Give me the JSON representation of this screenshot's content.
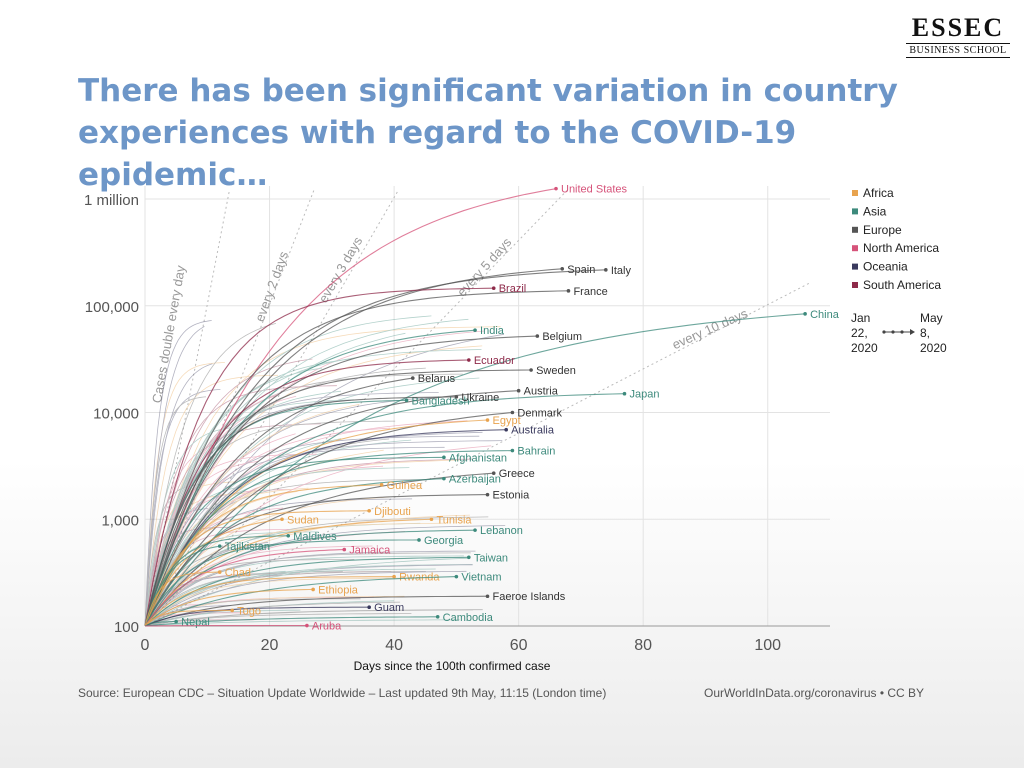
{
  "logo": {
    "main": "ESSEC",
    "sub": "BUSINESS SCHOOL"
  },
  "slide": {
    "title": "There has been significant variation in country experiences with regard to the COVID-19 epidemic…"
  },
  "footer": {
    "source": "Source: European CDC – Situation Update Worldwide – Last updated 9th May, 11:15 (London time)",
    "url": "OurWorldInData.org/coronavirus • CC BY"
  },
  "chart_data": {
    "type": "line",
    "title": "",
    "xlabel": "Days since the 100th confirmed case",
    "ylabel": "",
    "xlim": [
      0,
      110
    ],
    "ylim": [
      100,
      1300000
    ],
    "y_scale": "log",
    "grid": true,
    "x_ticks": [
      {
        "value": 0,
        "label": "0"
      },
      {
        "value": 20,
        "label": "20"
      },
      {
        "value": 40,
        "label": "40"
      },
      {
        "value": 60,
        "label": "60"
      },
      {
        "value": 80,
        "label": "80"
      },
      {
        "value": 100,
        "label": "100"
      }
    ],
    "y_ticks": [
      {
        "value": 100,
        "label": "100"
      },
      {
        "value": 1000,
        "label": "1,000"
      },
      {
        "value": 10000,
        "label": "10,000"
      },
      {
        "value": 100000,
        "label": "100,000"
      },
      {
        "value": 1000000,
        "label": "1 million"
      }
    ],
    "legend": {
      "position": "top-right",
      "entries": [
        {
          "name": "Africa",
          "color": "#e8a34e"
        },
        {
          "name": "Asia",
          "color": "#3d8a7c"
        },
        {
          "name": "Europe",
          "color": "#555555"
        },
        {
          "name": "North America",
          "color": "#d6537a"
        },
        {
          "name": "Oceania",
          "color": "#3a3a5e"
        },
        {
          "name": "South America",
          "color": "#8e2a4a"
        }
      ],
      "time_range": {
        "start": [
          "Jan",
          "22,",
          "2020"
        ],
        "end": [
          "May",
          "8,",
          "2020"
        ]
      }
    },
    "reference_lines": [
      {
        "label": "Cases double every day",
        "doubling_days": 1
      },
      {
        "label": "every 2 days",
        "doubling_days": 2
      },
      {
        "label": "every 3 days",
        "doubling_days": 3
      },
      {
        "label": "every 5 days",
        "doubling_days": 5
      },
      {
        "label": "every 10 days",
        "doubling_days": 10
      }
    ],
    "series": [
      {
        "name": "United States",
        "region": "North America",
        "days": 66,
        "final": 1250000
      },
      {
        "name": "Spain",
        "region": "Europe",
        "days": 67,
        "final": 222000
      },
      {
        "name": "Italy",
        "region": "Europe",
        "days": 74,
        "final": 217000
      },
      {
        "name": "France",
        "region": "Europe",
        "days": 68,
        "final": 138000
      },
      {
        "name": "Brazil",
        "region": "South America",
        "days": 56,
        "final": 146000
      },
      {
        "name": "China",
        "region": "Asia",
        "days": 106,
        "final": 84000
      },
      {
        "name": "India",
        "region": "Asia",
        "days": 53,
        "final": 59000
      },
      {
        "name": "Belgium",
        "region": "Europe",
        "days": 63,
        "final": 52000
      },
      {
        "name": "Ecuador",
        "region": "South America",
        "days": 52,
        "final": 31000
      },
      {
        "name": "Sweden",
        "region": "Europe",
        "days": 62,
        "final": 25000
      },
      {
        "name": "Belarus",
        "region": "Europe",
        "days": 43,
        "final": 21000
      },
      {
        "name": "Austria",
        "region": "Europe",
        "days": 60,
        "final": 16000
      },
      {
        "name": "Japan",
        "region": "Asia",
        "days": 77,
        "final": 15000
      },
      {
        "name": "Bangladesh",
        "region": "Asia",
        "days": 42,
        "final": 13000
      },
      {
        "name": "Ukraine",
        "region": "Europe",
        "days": 50,
        "final": 14000
      },
      {
        "name": "Denmark",
        "region": "Europe",
        "days": 59,
        "final": 10000
      },
      {
        "name": "Egypt",
        "region": "Africa",
        "days": 55,
        "final": 8500
      },
      {
        "name": "Australia",
        "region": "Oceania",
        "days": 58,
        "final": 6900
      },
      {
        "name": "Bahrain",
        "region": "Asia",
        "days": 59,
        "final": 4400
      },
      {
        "name": "Afghanistan",
        "region": "Asia",
        "days": 48,
        "final": 3800
      },
      {
        "name": "Greece",
        "region": "Europe",
        "days": 56,
        "final": 2700
      },
      {
        "name": "Azerbaijan",
        "region": "Asia",
        "days": 48,
        "final": 2400
      },
      {
        "name": "Guinea",
        "region": "Africa",
        "days": 38,
        "final": 2100
      },
      {
        "name": "Estonia",
        "region": "Europe",
        "days": 55,
        "final": 1700
      },
      {
        "name": "Djibouti",
        "region": "Africa",
        "days": 36,
        "final": 1200
      },
      {
        "name": "Sudan",
        "region": "Africa",
        "days": 22,
        "final": 1000
      },
      {
        "name": "Tunisia",
        "region": "Africa",
        "days": 46,
        "final": 1000
      },
      {
        "name": "Lebanon",
        "region": "Asia",
        "days": 53,
        "final": 790
      },
      {
        "name": "Maldives",
        "region": "Asia",
        "days": 23,
        "final": 700
      },
      {
        "name": "Georgia",
        "region": "Asia",
        "days": 44,
        "final": 640
      },
      {
        "name": "Tajikistan",
        "region": "Asia",
        "days": 12,
        "final": 560
      },
      {
        "name": "Jamaica",
        "region": "North America",
        "days": 32,
        "final": 520
      },
      {
        "name": "Taiwan",
        "region": "Asia",
        "days": 52,
        "final": 440
      },
      {
        "name": "Chad",
        "region": "Africa",
        "days": 12,
        "final": 320
      },
      {
        "name": "Rwanda",
        "region": "Africa",
        "days": 40,
        "final": 290
      },
      {
        "name": "Vietnam",
        "region": "Asia",
        "days": 50,
        "final": 290
      },
      {
        "name": "Ethiopia",
        "region": "Africa",
        "days": 27,
        "final": 220
      },
      {
        "name": "Faeroe Islands",
        "region": "Europe",
        "days": 55,
        "final": 190
      },
      {
        "name": "Guam",
        "region": "Oceania",
        "days": 36,
        "final": 150
      },
      {
        "name": "Togo",
        "region": "Africa",
        "days": 14,
        "final": 140
      },
      {
        "name": "Cambodia",
        "region": "Asia",
        "days": 47,
        "final": 122
      },
      {
        "name": "Nepal",
        "region": "Asia",
        "days": 5,
        "final": 110
      },
      {
        "name": "Aruba",
        "region": "North America",
        "days": 26,
        "final": 101
      }
    ]
  }
}
